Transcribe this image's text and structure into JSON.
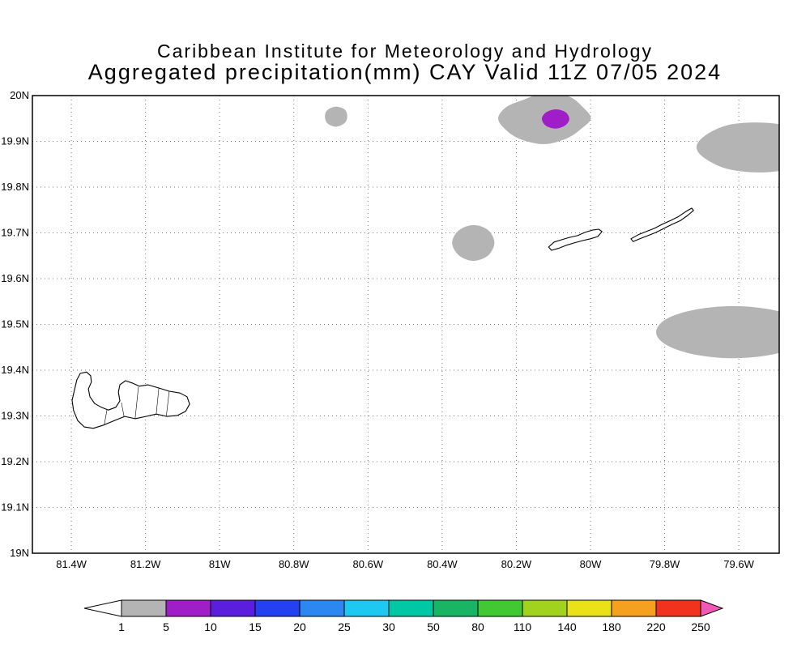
{
  "header": {
    "line1": "Caribbean Institute for Meteorology and Hydrology",
    "line2": "Aggregated precipitation(mm) CAY Valid 11Z 07/05 2024"
  },
  "chart_data": {
    "type": "heatmap",
    "subtype": "filled-contour precipitation map (GrADS style)",
    "title": "Aggregated precipitation(mm) CAY Valid 11Z 07/05 2024",
    "organization": "Caribbean Institute for Meteorology and Hydrology",
    "region": "CAY (Cayman Islands)",
    "valid_time": "11Z 07/05 2024",
    "units": "mm",
    "x_axis": {
      "tick_values_deg_west": [
        81.4,
        81.2,
        81.0,
        80.8,
        80.6,
        80.4,
        80.2,
        80.0,
        79.8,
        79.6
      ],
      "tick_labels": [
        "81.4W",
        "81.2W",
        "81W",
        "80.8W",
        "80.6W",
        "80.4W",
        "80.2W",
        "80W",
        "79.8W",
        "79.6W"
      ],
      "range_deg_west": [
        81.505,
        79.491
      ]
    },
    "y_axis": {
      "tick_values_deg_north": [
        19.0,
        19.1,
        19.2,
        19.3,
        19.4,
        19.5,
        19.6,
        19.7,
        19.8,
        19.9,
        20.0
      ],
      "tick_labels": [
        "19N",
        "19.1N",
        "19.2N",
        "19.3N",
        "19.4N",
        "19.5N",
        "19.6N",
        "19.7N",
        "19.8N",
        "19.9N",
        "20N"
      ],
      "range_deg_north": [
        19.0,
        20.0
      ]
    },
    "grid": {
      "style": "dotted",
      "color": "#777777"
    },
    "colorbar": {
      "labels": [
        "1",
        "5",
        "10",
        "15",
        "20",
        "25",
        "30",
        "50",
        "80",
        "110",
        "140",
        "180",
        "220",
        "250"
      ],
      "segment_colors": [
        "#b4b4b4",
        "#a01ec8",
        "#5a1edc",
        "#2341f0",
        "#2d87f0",
        "#1ec8f0",
        "#00c8a5",
        "#19b464",
        "#41c832",
        "#a0d21e",
        "#ebe119",
        "#f5a01e",
        "#f0321e"
      ],
      "below_min_color": "#ffffff",
      "above_max_color": "#f05ab4"
    },
    "precip_regions": [
      {
        "name": "small-cell-north-80p7w",
        "level_mm": "1-5",
        "color_index": 0,
        "polygon_lon_lat": [
          [
            80.656,
            19.954
          ],
          [
            80.662,
            19.969
          ],
          [
            80.686,
            19.976
          ],
          [
            80.71,
            19.968
          ],
          [
            80.716,
            19.954
          ],
          [
            80.709,
            19.939
          ],
          [
            80.686,
            19.932
          ],
          [
            80.663,
            19.94
          ]
        ]
      },
      {
        "name": "large-cell-north-80p1w",
        "level_mm": "1-5",
        "color_index": 0,
        "polygon_lon_lat": [
          [
            79.999,
            19.95
          ],
          [
            80.021,
            19.975
          ],
          [
            80.058,
            19.998
          ],
          [
            80.124,
            20.006
          ],
          [
            80.18,
            19.991
          ],
          [
            80.227,
            19.975
          ],
          [
            80.249,
            19.95
          ],
          [
            80.227,
            19.924
          ],
          [
            80.187,
            19.904
          ],
          [
            80.124,
            19.894
          ],
          [
            80.065,
            19.906
          ],
          [
            80.027,
            19.926
          ]
        ]
      },
      {
        "name": "core-north-80p1w",
        "level_mm": "5-10",
        "color_index": 1,
        "polygon_lon_lat": [
          [
            80.057,
            19.949
          ],
          [
            80.068,
            19.964
          ],
          [
            80.094,
            19.97
          ],
          [
            80.12,
            19.963
          ],
          [
            80.131,
            19.949
          ],
          [
            80.12,
            19.934
          ],
          [
            80.094,
            19.928
          ],
          [
            80.068,
            19.935
          ]
        ]
      },
      {
        "name": "cell-northeast-edge",
        "level_mm": "1-5",
        "color_index": 0,
        "polygon_lon_lat": [
          [
            79.386,
            19.887
          ],
          [
            79.415,
            19.913
          ],
          [
            79.468,
            19.934
          ],
          [
            79.55,
            19.941
          ],
          [
            79.632,
            19.935
          ],
          [
            79.692,
            19.912
          ],
          [
            79.714,
            19.887
          ],
          [
            79.692,
            19.863
          ],
          [
            79.632,
            19.84
          ],
          [
            79.55,
            19.832
          ],
          [
            79.468,
            19.839
          ],
          [
            79.415,
            19.861
          ]
        ]
      },
      {
        "name": "cell-central-80p3w",
        "level_mm": "1-5",
        "color_index": 0,
        "polygon_lon_lat": [
          [
            80.259,
            19.678
          ],
          [
            80.276,
            19.706
          ],
          [
            80.316,
            19.717
          ],
          [
            80.356,
            19.705
          ],
          [
            80.373,
            19.678
          ],
          [
            80.355,
            19.651
          ],
          [
            80.316,
            19.639
          ],
          [
            80.277,
            19.65
          ]
        ]
      },
      {
        "name": "cell-southeast-edge",
        "level_mm": "1-5",
        "color_index": 0,
        "polygon_lon_lat": [
          [
            79.407,
            19.483
          ],
          [
            79.435,
            19.512
          ],
          [
            79.511,
            19.532
          ],
          [
            79.615,
            19.54
          ],
          [
            79.719,
            19.532
          ],
          [
            79.795,
            19.512
          ],
          [
            79.823,
            19.483
          ],
          [
            79.795,
            19.455
          ],
          [
            79.719,
            19.434
          ],
          [
            79.615,
            19.426
          ],
          [
            79.511,
            19.434
          ],
          [
            79.435,
            19.455
          ]
        ]
      }
    ],
    "islands": [
      {
        "id": "grand-cayman",
        "name": "Grand Cayman",
        "outline_lon_lat": [
          [
            81.376,
            19.393
          ],
          [
            81.359,
            19.396
          ],
          [
            81.348,
            19.388
          ],
          [
            81.346,
            19.374
          ],
          [
            81.354,
            19.359
          ],
          [
            81.35,
            19.342
          ],
          [
            81.337,
            19.327
          ],
          [
            81.319,
            19.319
          ],
          [
            81.3,
            19.313
          ],
          [
            81.28,
            19.319
          ],
          [
            81.269,
            19.333
          ],
          [
            81.273,
            19.352
          ],
          [
            81.269,
            19.368
          ],
          [
            81.254,
            19.377
          ],
          [
            81.236,
            19.372
          ],
          [
            81.217,
            19.365
          ],
          [
            81.193,
            19.368
          ],
          [
            81.164,
            19.361
          ],
          [
            81.136,
            19.354
          ],
          [
            81.107,
            19.35
          ],
          [
            81.088,
            19.342
          ],
          [
            81.081,
            19.326
          ],
          [
            81.092,
            19.31
          ],
          [
            81.114,
            19.301
          ],
          [
            81.142,
            19.299
          ],
          [
            81.171,
            19.304
          ],
          [
            81.199,
            19.299
          ],
          [
            81.228,
            19.294
          ],
          [
            81.256,
            19.299
          ],
          [
            81.284,
            19.29
          ],
          [
            81.313,
            19.28
          ],
          [
            81.341,
            19.273
          ],
          [
            81.365,
            19.276
          ],
          [
            81.383,
            19.29
          ],
          [
            81.394,
            19.312
          ],
          [
            81.398,
            19.334
          ],
          [
            81.391,
            19.359
          ],
          [
            81.385,
            19.379
          ]
        ],
        "internal_lines_lon_lat": [
          [
            [
              81.304,
              19.313
            ],
            [
              81.311,
              19.281
            ]
          ],
          [
            [
              81.265,
              19.329
            ],
            [
              81.258,
              19.299
            ]
          ],
          [
            [
              81.219,
              19.363
            ],
            [
              81.228,
              19.294
            ]
          ],
          [
            [
              81.164,
              19.361
            ],
            [
              81.171,
              19.304
            ]
          ],
          [
            [
              81.136,
              19.354
            ],
            [
              81.144,
              19.299
            ]
          ]
        ]
      },
      {
        "id": "little-cayman",
        "name": "Little Cayman",
        "outline_lon_lat": [
          [
            80.113,
            19.669
          ],
          [
            80.098,
            19.68
          ],
          [
            80.078,
            19.685
          ],
          [
            80.057,
            19.69
          ],
          [
            80.035,
            19.694
          ],
          [
            80.015,
            19.701
          ],
          [
            79.995,
            19.706
          ],
          [
            79.978,
            19.708
          ],
          [
            79.969,
            19.703
          ],
          [
            79.98,
            19.692
          ],
          [
            80.0,
            19.687
          ],
          [
            80.022,
            19.683
          ],
          [
            80.044,
            19.678
          ],
          [
            80.065,
            19.673
          ],
          [
            80.087,
            19.666
          ],
          [
            80.105,
            19.662
          ]
        ],
        "internal_lines_lon_lat": []
      },
      {
        "id": "cayman-brac",
        "name": "Cayman Brac",
        "outline_lon_lat": [
          [
            79.891,
            19.687
          ],
          [
            79.871,
            19.696
          ],
          [
            79.849,
            19.703
          ],
          [
            79.827,
            19.71
          ],
          [
            79.806,
            19.719
          ],
          [
            79.784,
            19.727
          ],
          [
            79.762,
            19.736
          ],
          [
            79.742,
            19.747
          ],
          [
            79.727,
            19.754
          ],
          [
            79.722,
            19.749
          ],
          [
            79.738,
            19.738
          ],
          [
            79.757,
            19.727
          ],
          [
            79.779,
            19.719
          ],
          [
            79.801,
            19.71
          ],
          [
            79.823,
            19.701
          ],
          [
            79.845,
            19.694
          ],
          [
            79.867,
            19.687
          ],
          [
            79.885,
            19.681
          ]
        ],
        "internal_lines_lon_lat": []
      }
    ]
  }
}
